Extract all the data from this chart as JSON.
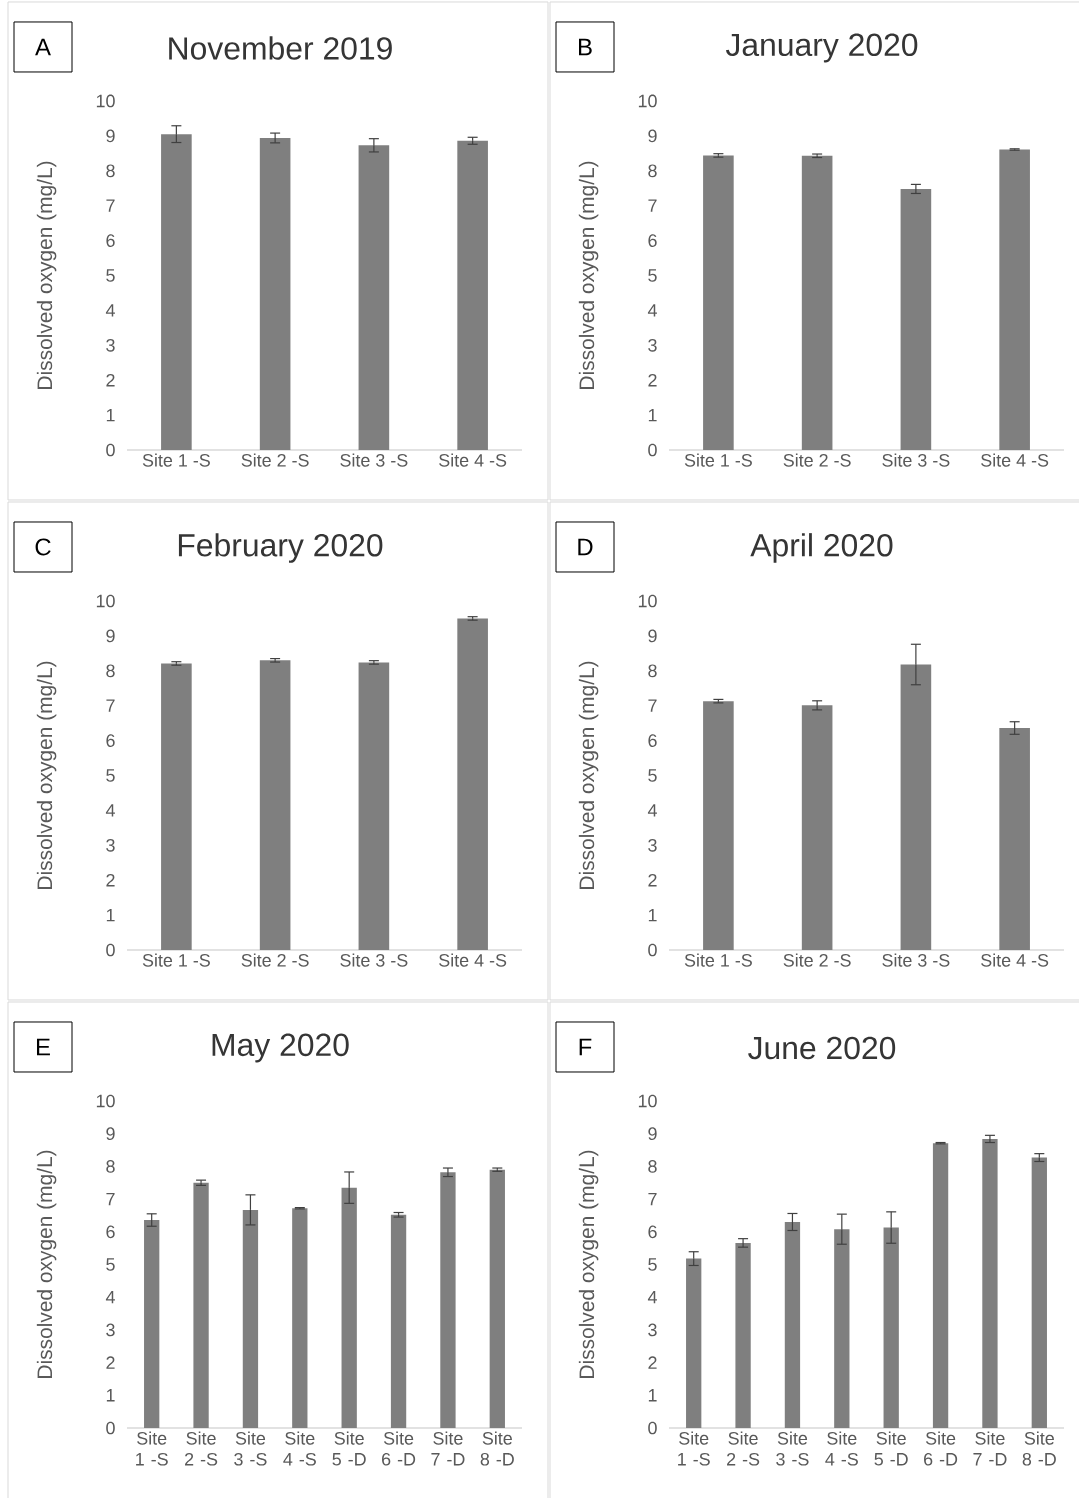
{
  "chart_data": [
    {
      "type": "bar",
      "title": "November 2019",
      "annotations": [
        "A"
      ],
      "ylabel": "Dissolved oxygen (mg/L)",
      "categories": [
        "Site 1 -S",
        "Site 2 -S",
        "Site 3 -S",
        "Site 4 -S"
      ],
      "values": [
        9.05,
        8.94,
        8.73,
        8.86
      ],
      "errors": [
        0.24,
        0.14,
        0.19,
        0.1
      ],
      "color": "#7f7f7f",
      "ylim": [
        0,
        10
      ],
      "yticks": [
        0,
        1,
        2,
        3,
        4,
        5,
        6,
        7,
        8,
        9,
        10
      ]
    },
    {
      "type": "bar",
      "title": "January 2020",
      "annotations": [
        "B"
      ],
      "ylabel": "Dissolved oxygen (mg/L)",
      "categories": [
        "Site 1 -S",
        "Site 2 -S",
        "Site 3 -S",
        "Site 4 -S"
      ],
      "values": [
        8.44,
        8.43,
        7.48,
        8.61
      ],
      "errors": [
        0.05,
        0.05,
        0.13,
        0.02
      ],
      "color": "#7f7f7f",
      "ylim": [
        0,
        10
      ],
      "yticks": [
        0,
        1,
        2,
        3,
        4,
        5,
        6,
        7,
        8,
        9,
        10
      ]
    },
    {
      "type": "bar",
      "title": "February 2020",
      "annotations": [
        "C"
      ],
      "ylabel": "Dissolved oxygen (mg/L)",
      "categories": [
        "Site 1 -S",
        "Site 2 -S",
        "Site 3 -S",
        "Site 4 -S"
      ],
      "values": [
        8.21,
        8.3,
        8.24,
        9.5
      ],
      "errors": [
        0.05,
        0.05,
        0.05,
        0.05
      ],
      "color": "#7f7f7f",
      "ylim": [
        0,
        10
      ],
      "yticks": [
        0,
        1,
        2,
        3,
        4,
        5,
        6,
        7,
        8,
        9,
        10
      ]
    },
    {
      "type": "bar",
      "title": "April 2020",
      "annotations": [
        "D"
      ],
      "ylabel": "Dissolved oxygen (mg/L)",
      "categories": [
        "Site 1 -S",
        "Site 2 -S",
        "Site 3 -S",
        "Site 4 -S"
      ],
      "values": [
        7.13,
        7.01,
        8.18,
        6.36
      ],
      "errors": [
        0.05,
        0.13,
        0.58,
        0.18
      ],
      "color": "#7f7f7f",
      "ylim": [
        0,
        10
      ],
      "yticks": [
        0,
        1,
        2,
        3,
        4,
        5,
        6,
        7,
        8,
        9,
        10
      ]
    },
    {
      "type": "bar",
      "title": "May 2020",
      "annotations": [
        "E"
      ],
      "ylabel": "Dissolved oxygen (mg/L)",
      "categories": [
        "Site 1 -S",
        "Site 2 -S",
        "Site 3 -S",
        "Site 4 -S",
        "Site 5 -D",
        "Site 6 -D",
        "Site 7 -D",
        "Site 8 -D"
      ],
      "values": [
        6.36,
        7.5,
        6.67,
        6.72,
        7.35,
        6.52,
        7.82,
        7.9
      ],
      "errors": [
        0.19,
        0.08,
        0.46,
        0.02,
        0.48,
        0.07,
        0.13,
        0.05
      ],
      "color": "#7f7f7f",
      "ylim": [
        0,
        10
      ],
      "yticks": [
        0,
        1,
        2,
        3,
        4,
        5,
        6,
        7,
        8,
        9,
        10
      ]
    },
    {
      "type": "bar",
      "title": "June 2020",
      "annotations": [
        "F"
      ],
      "ylabel": "Dissolved oxygen (mg/L)",
      "categories": [
        "Site 1 -S",
        "Site 2 -S",
        "Site 3 -S",
        "Site 4 -S",
        "Site 5 -D",
        "Site 6 -D",
        "Site 7 -D",
        "Site 8 -D"
      ],
      "values": [
        5.18,
        5.66,
        6.3,
        6.08,
        6.13,
        8.71,
        8.84,
        8.27
      ],
      "errors": [
        0.21,
        0.13,
        0.26,
        0.46,
        0.48,
        0.02,
        0.11,
        0.12
      ],
      "color": "#7f7f7f",
      "ylim": [
        0,
        10
      ],
      "yticks": [
        0,
        1,
        2,
        3,
        4,
        5,
        6,
        7,
        8,
        9,
        10
      ]
    }
  ]
}
